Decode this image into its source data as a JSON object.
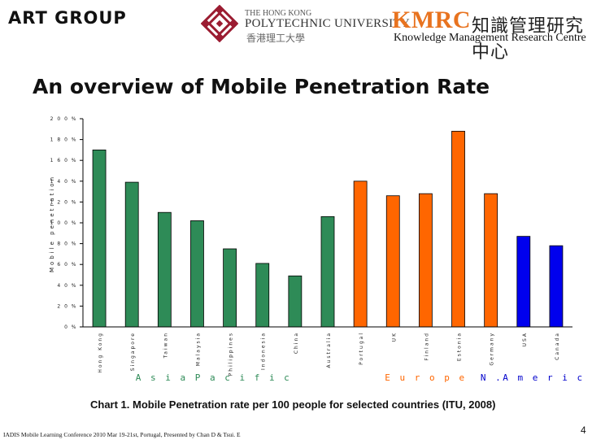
{
  "header": {
    "left_brand": "ART GROUP",
    "polyu_line1": "THE HONG KONG",
    "polyu_line2": "POLYTECHNIC UNIVERSITY",
    "polyu_zh": "香港理工大學",
    "kmrc_brand": "KMRC",
    "kmrc_zh": "知識管理研究中心",
    "kmrc_en": "Knowledge Management Research Centre"
  },
  "slide": {
    "title": "An overview of Mobile Penetration Rate",
    "caption": "Chart 1.  Mobile Penetration rate per 100 people for selected countries (ITU, 2008)",
    "page_number": "4",
    "footer": "IADIS Mobile Learning Conference 2010 Mar 19-21st, Portugal,  Presented by Chan D & Tsui. E"
  },
  "chart_data": {
    "type": "bar",
    "title": "",
    "xlabel": "",
    "ylabel": "Mobile penetration",
    "ylim": [
      0,
      200
    ],
    "yticks": [
      0,
      20,
      40,
      60,
      80,
      100,
      120,
      140,
      160,
      180,
      200
    ],
    "ytick_labels": [
      "0 %",
      "2 0 %",
      "4 0 %",
      "6 0 %",
      "8 0 %",
      "1 0 0 %",
      "1 2 0 %",
      "1 4 0 %",
      "1 6 0 %",
      "1 8 0 %",
      "2 0 0 %"
    ],
    "grid": false,
    "categories": [
      "Hong Kong",
      "Singapore",
      "Taiwan",
      "Malaysia",
      "Philippines",
      "Indonesia",
      "China",
      "Australia",
      "Portugal",
      "UK",
      "Finland",
      "Estonia",
      "Germany",
      "USA",
      "Canada"
    ],
    "values": [
      170,
      139,
      110,
      102,
      75,
      61,
      49,
      106,
      140,
      126,
      128,
      188,
      128,
      87,
      78
    ],
    "groups": [
      {
        "name": "Asia Pacific",
        "label": "A s i a  P a c i f i c",
        "color": "#2e8b57",
        "categories": [
          "Hong Kong",
          "Singapore",
          "Taiwan",
          "Malaysia",
          "Philippines",
          "Indonesia",
          "China",
          "Australia"
        ]
      },
      {
        "name": "Europe",
        "label": "E u r o p e",
        "color": "#ff6600",
        "categories": [
          "Portugal",
          "UK",
          "Finland",
          "Estonia",
          "Germany"
        ]
      },
      {
        "name": "N.America",
        "label": "N .A m e r i c a",
        "color": "#0000ee",
        "categories": [
          "USA",
          "Canada"
        ]
      }
    ]
  }
}
